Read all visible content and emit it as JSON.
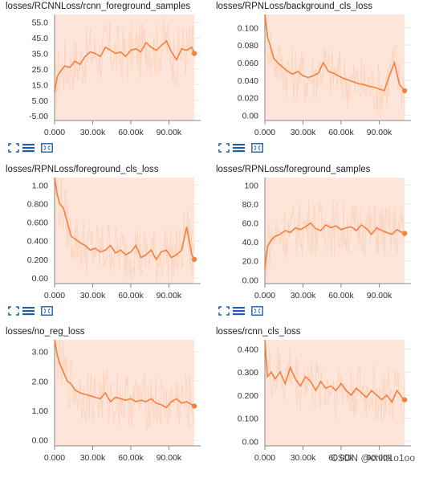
{
  "colors": {
    "line": "#f47f3e",
    "band": "#fbd3bd",
    "band_light": "#fde6d9",
    "axis": "#888888",
    "icon": "#1f5fa8",
    "grid": "#e8e8e8"
  },
  "watermark": "CSDN @chltt1o1oo",
  "icons": [
    "expand-icon",
    "list-lines-icon",
    "fit-domain-icon"
  ],
  "chart_data": [
    {
      "type": "line",
      "title": "losses/RCNNLoss/rcnn_foreground_samples",
      "xlim": [
        0,
        115000
      ],
      "ylim": [
        -8,
        60
      ],
      "y_ticks": [
        -5.0,
        5.0,
        15.0,
        25.0,
        35.0,
        45.0,
        55.0
      ],
      "y_tick_labels": [
        "-5.00",
        "5.00",
        "15.0",
        "25.0",
        "35.0",
        "45.0",
        "55.0"
      ],
      "x_ticks": [
        0,
        30000,
        60000,
        90000
      ],
      "x_tick_labels": [
        "0.000",
        "30.00k",
        "60.00k",
        "90.00k"
      ],
      "series": [
        {
          "x": [
            0,
            2000,
            5000,
            8000,
            12000,
            16000,
            20000,
            24000,
            28000,
            32000,
            36000,
            40000,
            44000,
            48000,
            52000,
            56000,
            60000,
            64000,
            68000,
            72000,
            76000,
            80000,
            84000,
            88000,
            92000,
            96000,
            100000,
            104000,
            108000,
            110000
          ],
          "y": [
            10,
            20,
            24,
            27,
            26,
            30,
            28,
            33,
            36,
            35,
            33,
            39,
            37,
            35,
            36,
            33,
            37,
            38,
            36,
            42,
            39,
            37,
            40,
            43,
            36,
            31,
            38,
            37,
            39,
            35
          ]
        }
      ]
    },
    {
      "type": "line",
      "title": "losses/RPNLoss/background_cls_loss",
      "xlim": [
        0,
        115000
      ],
      "ylim": [
        -0.006,
        0.115
      ],
      "y_ticks": [
        0.0,
        0.02,
        0.04,
        0.06,
        0.08,
        0.1
      ],
      "y_tick_labels": [
        "0.00",
        "0.020",
        "0.040",
        "0.060",
        "0.080",
        "0.100"
      ],
      "x_ticks": [
        0,
        30000,
        60000,
        90000
      ],
      "x_tick_labels": [
        "0.000",
        "30.00k",
        "60.00k",
        "90.00k"
      ],
      "series": [
        {
          "x": [
            0,
            2000,
            4000,
            7000,
            10000,
            14000,
            18000,
            22000,
            26000,
            30000,
            34000,
            38000,
            42000,
            46000,
            50000,
            54000,
            58000,
            62000,
            66000,
            70000,
            74000,
            78000,
            82000,
            86000,
            90000,
            94000,
            98000,
            102000,
            106000,
            110000
          ],
          "y": [
            0.115,
            0.09,
            0.08,
            0.065,
            0.06,
            0.055,
            0.05,
            0.047,
            0.05,
            0.045,
            0.043,
            0.045,
            0.048,
            0.06,
            0.05,
            0.048,
            0.045,
            0.042,
            0.04,
            0.038,
            0.036,
            0.035,
            0.033,
            0.032,
            0.03,
            0.028,
            0.045,
            0.06,
            0.035,
            0.028
          ]
        }
      ]
    },
    {
      "type": "line",
      "title": "losses/RPNLoss/foreground_cls_loss",
      "xlim": [
        0,
        115000
      ],
      "ylim": [
        -0.06,
        1.08
      ],
      "y_ticks": [
        0.0,
        0.2,
        0.4,
        0.6,
        0.8,
        1.0
      ],
      "y_tick_labels": [
        "0.00",
        "0.200",
        "0.400",
        "0.600",
        "0.800",
        "1.00"
      ],
      "x_ticks": [
        0,
        30000,
        60000,
        90000
      ],
      "x_tick_labels": [
        "0.000",
        "30.00k",
        "60.00k",
        "90.00k"
      ],
      "series": [
        {
          "x": [
            0,
            2000,
            4000,
            7000,
            10000,
            13000,
            16000,
            20000,
            24000,
            28000,
            32000,
            36000,
            40000,
            44000,
            48000,
            52000,
            56000,
            60000,
            64000,
            68000,
            72000,
            76000,
            80000,
            84000,
            88000,
            92000,
            96000,
            100000,
            104000,
            108000,
            110000
          ],
          "y": [
            1.08,
            0.9,
            0.8,
            0.75,
            0.6,
            0.45,
            0.42,
            0.38,
            0.35,
            0.3,
            0.32,
            0.28,
            0.3,
            0.35,
            0.27,
            0.3,
            0.25,
            0.28,
            0.35,
            0.22,
            0.25,
            0.3,
            0.2,
            0.28,
            0.3,
            0.22,
            0.25,
            0.3,
            0.55,
            0.25,
            0.2
          ]
        }
      ]
    },
    {
      "type": "line",
      "title": "losses/RPNLoss/foreground_samples",
      "xlim": [
        0,
        115000
      ],
      "ylim": [
        -4,
        108
      ],
      "y_ticks": [
        0,
        20,
        40,
        60,
        80,
        100
      ],
      "y_tick_labels": [
        "0.00",
        "20.0",
        "40.0",
        "60.0",
        "80.0",
        "100"
      ],
      "x_ticks": [
        0,
        30000,
        60000,
        90000
      ],
      "x_tick_labels": [
        "0.000",
        "30.00k",
        "60.00k",
        "90.00k"
      ],
      "series": [
        {
          "x": [
            0,
            2000,
            5000,
            8000,
            12000,
            16000,
            20000,
            24000,
            28000,
            32000,
            36000,
            40000,
            44000,
            48000,
            52000,
            56000,
            60000,
            64000,
            68000,
            72000,
            76000,
            80000,
            84000,
            88000,
            92000,
            96000,
            100000,
            104000,
            108000,
            110000
          ],
          "y": [
            12,
            35,
            42,
            46,
            48,
            52,
            50,
            55,
            53,
            56,
            60,
            54,
            52,
            58,
            55,
            57,
            53,
            55,
            56,
            52,
            58,
            54,
            48,
            55,
            52,
            50,
            48,
            53,
            50,
            49
          ]
        }
      ]
    },
    {
      "type": "line",
      "title": "losses/no_reg_loss",
      "xlim": [
        0,
        115000
      ],
      "ylim": [
        -0.2,
        3.4
      ],
      "y_ticks": [
        0.0,
        1.0,
        2.0,
        3.0
      ],
      "y_tick_labels": [
        "0.00",
        "1.00",
        "2.00",
        "3.00"
      ],
      "x_ticks": [
        0,
        30000,
        60000,
        90000
      ],
      "x_tick_labels": [
        "0.000",
        "30.00k",
        "60.00k",
        "90.00k"
      ],
      "series": [
        {
          "x": [
            0,
            2000,
            4000,
            7000,
            10000,
            13000,
            16000,
            20000,
            24000,
            28000,
            32000,
            36000,
            40000,
            44000,
            48000,
            52000,
            56000,
            60000,
            64000,
            68000,
            72000,
            76000,
            80000,
            84000,
            88000,
            92000,
            96000,
            100000,
            104000,
            108000,
            110000
          ],
          "y": [
            3.4,
            2.9,
            2.6,
            2.3,
            2.0,
            1.9,
            1.7,
            1.6,
            1.55,
            1.5,
            1.45,
            1.4,
            1.6,
            1.3,
            1.45,
            1.4,
            1.35,
            1.4,
            1.3,
            1.35,
            1.3,
            1.4,
            1.25,
            1.2,
            1.1,
            1.3,
            1.4,
            1.25,
            1.3,
            1.2,
            1.15
          ]
        }
      ]
    },
    {
      "type": "line",
      "title": "losses/rcnn_cls_loss",
      "xlim": [
        0,
        115000
      ],
      "ylim": [
        -0.02,
        0.44
      ],
      "y_ticks": [
        0.0,
        0.1,
        0.2,
        0.3,
        0.4
      ],
      "y_tick_labels": [
        "0.00",
        "0.100",
        "0.200",
        "0.300",
        "0.400"
      ],
      "x_ticks": [
        0,
        30000,
        60000,
        90000
      ],
      "x_tick_labels": [
        "0.000",
        "30.00k",
        "60.00k",
        "90.00k"
      ],
      "series": [
        {
          "x": [
            0,
            2000,
            5000,
            8000,
            12000,
            16000,
            20000,
            24000,
            28000,
            32000,
            36000,
            40000,
            44000,
            48000,
            52000,
            56000,
            60000,
            64000,
            68000,
            72000,
            76000,
            80000,
            84000,
            88000,
            92000,
            96000,
            100000,
            104000,
            108000,
            110000
          ],
          "y": [
            0.44,
            0.28,
            0.3,
            0.27,
            0.3,
            0.25,
            0.32,
            0.27,
            0.24,
            0.28,
            0.26,
            0.22,
            0.26,
            0.23,
            0.24,
            0.22,
            0.25,
            0.22,
            0.2,
            0.23,
            0.21,
            0.19,
            0.22,
            0.2,
            0.18,
            0.2,
            0.17,
            0.22,
            0.19,
            0.18
          ]
        }
      ]
    }
  ]
}
